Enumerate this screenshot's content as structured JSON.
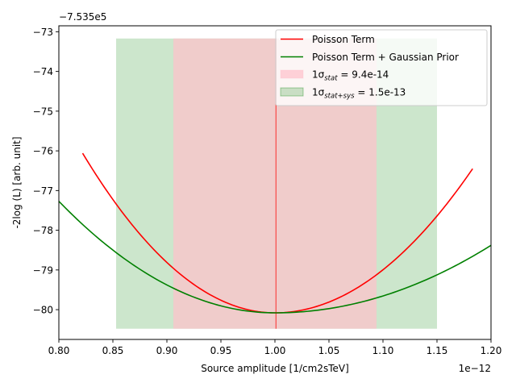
{
  "chart_data": {
    "type": "line",
    "title": "",
    "xlabel": "Source amplitude [1/cm2sTeV]",
    "ylabel": "-2log (L) [arb. unit]",
    "x_offset_label": "1e−12",
    "y_offset_label": "−7.535e5",
    "xlim": [
      0.8,
      1.2
    ],
    "ylim": [
      -80.75,
      -72.85
    ],
    "x_ticks": [
      0.8,
      0.85,
      0.9,
      0.95,
      1.0,
      1.05,
      1.1,
      1.15,
      1.2
    ],
    "x_tick_labels": [
      "0.80",
      "0.85",
      "0.90",
      "0.95",
      "1.00",
      "1.05",
      "1.10",
      "1.15",
      "1.20"
    ],
    "y_ticks": [
      -80,
      -79,
      -78,
      -77,
      -76,
      -75,
      -74,
      -73
    ],
    "y_tick_labels": [
      "−80",
      "−79",
      "−78",
      "−77",
      "−76",
      "−75",
      "−74",
      "−73"
    ],
    "grid": false,
    "legend_position": "top-right",
    "series": [
      {
        "name": "Poisson Term",
        "color": "#ff0000",
        "minimum_x": 1.0,
        "minimum_y": -80.08,
        "x": [
          0.822,
          0.85,
          0.9,
          0.95,
          1.0,
          1.05,
          1.1,
          1.15,
          1.183
        ],
        "y": [
          -76.06,
          -77.28,
          -78.95,
          -79.79,
          -80.08,
          -79.79,
          -78.95,
          -77.58,
          -76.45
        ]
      },
      {
        "name": "Poisson Term + Gaussian Prior",
        "color": "#008000",
        "minimum_x": 1.0,
        "minimum_y": -80.08,
        "x": [
          0.8,
          0.85,
          0.9,
          0.95,
          1.0,
          1.05,
          1.1,
          1.15,
          1.2
        ],
        "y": [
          -77.27,
          -78.65,
          -79.51,
          -79.98,
          -80.08,
          -79.96,
          -79.63,
          -79.1,
          -78.38
        ]
      }
    ],
    "bands": [
      {
        "name": "1σstat = 9.4e-14",
        "legend_prefix": "1σ",
        "legend_sub": "stat",
        "legend_suffix": " = 9.4e-14",
        "color": "#ffc0cb",
        "x_range": [
          0.906,
          1.094
        ],
        "y_range": [
          -80.48,
          -73.17
        ]
      },
      {
        "name": "1σstat+sys = 1.5e-13",
        "legend_prefix": "1σ",
        "legend_sub": "stat+sys",
        "legend_suffix": " = 1.5e-13",
        "color": "#008000",
        "x_range": [
          0.853,
          1.15
        ],
        "y_range": [
          -80.48,
          -73.17
        ]
      }
    ],
    "vertical_marker": {
      "x": 1.001,
      "y_range": [
        -80.48,
        -73.17
      ],
      "color": "#ff0000"
    }
  }
}
